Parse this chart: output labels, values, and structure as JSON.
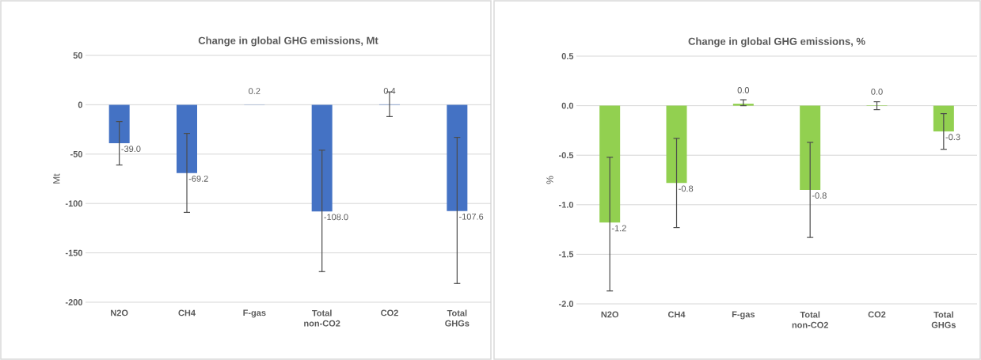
{
  "chart_data": [
    {
      "type": "bar",
      "title": "Change in global GHG emissions, Mt",
      "ylabel": "Mt",
      "categories": [
        "N2O",
        "CH4",
        "F-gas",
        "Total non-CO2",
        "CO2",
        "Total GHGs"
      ],
      "values": [
        -39.0,
        -69.2,
        0.2,
        -108.0,
        0.4,
        -107.6
      ],
      "errors": [
        [
          -61,
          -17
        ],
        [
          -109,
          -29
        ],
        null,
        [
          -169,
          -46
        ],
        [
          -12,
          13
        ],
        [
          -181,
          -33
        ]
      ],
      "value_labels": [
        "-39.0",
        "-69.2",
        "0.2",
        "-108.0",
        "0.4",
        "-107.6"
      ],
      "color": "#4472c4",
      "grid": "y",
      "ylim": [
        -200,
        50
      ],
      "yticks": [
        -200,
        -150,
        -100,
        -50,
        0,
        50
      ]
    },
    {
      "type": "bar",
      "title": "Change in global GHG emissions, %",
      "ylabel": "%",
      "categories": [
        "N2O",
        "CH4",
        "F-gas",
        "Total non-CO2",
        "CO2",
        "Total GHGs"
      ],
      "values": [
        -1.18,
        -0.78,
        0.02,
        -0.85,
        0.005,
        -0.26
      ],
      "value_labels": [
        "-1.2",
        "-0.8",
        "0.0",
        "-0.8",
        "0.0",
        "-0.3"
      ],
      "errors": [
        [
          -1.87,
          -0.52
        ],
        [
          -1.23,
          -0.33
        ],
        [
          0.0,
          0.06
        ],
        [
          -1.33,
          -0.37
        ],
        [
          -0.04,
          0.04
        ],
        [
          -0.44,
          -0.08
        ]
      ],
      "color": "#92d050",
      "grid": "y",
      "ylim": [
        -2.0,
        0.5
      ],
      "yticks": [
        {
          "value": -2.0,
          "label": "-2.0"
        },
        {
          "value": -1.5,
          "label": "-1.5"
        },
        {
          "value": -1.0,
          "label": "-1.0"
        },
        {
          "value": -0.5,
          "label": "-0.5"
        },
        {
          "value": 0.0,
          "label": "0.0"
        },
        {
          "value": 0.5,
          "label": "0.5"
        }
      ]
    }
  ]
}
